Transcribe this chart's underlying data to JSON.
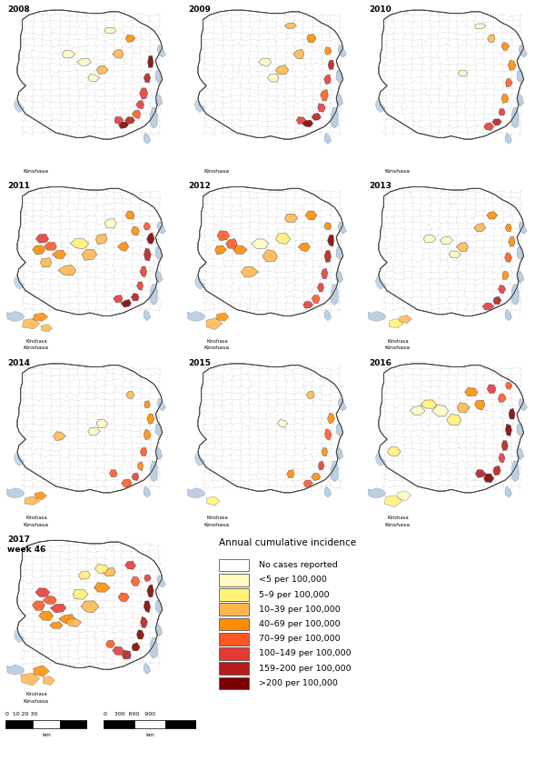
{
  "years": [
    "2008",
    "2009",
    "2010",
    "2011",
    "2012",
    "2013",
    "2014",
    "2015",
    "2016",
    "2017\nweek 46"
  ],
  "legend_title": "Annual cumulative incidence",
  "legend_items": [
    {
      "label": "No cases reported",
      "color": "#FFFFFF"
    },
    {
      "label": "<5 per 100,000",
      "color": "#FFF9C4"
    },
    {
      "label": "5–9 per 100,000",
      "color": "#FFF176"
    },
    {
      "label": "10–39 per 100,000",
      "color": "#FFB74D"
    },
    {
      "label": "40–69 per 100,000",
      "color": "#FF8C00"
    },
    {
      "label": "70–99 per 100,000",
      "color": "#FF5722"
    },
    {
      "label": "100–149 per 100,000",
      "color": "#E53935"
    },
    {
      "label": "159–200 per 100,000",
      "color": "#B71C1C"
    },
    {
      "label": ">200 per 100,000",
      "color": "#7B0000"
    }
  ],
  "background_color": "#FFFFFF",
  "fig_width": 6.0,
  "fig_height": 8.48,
  "dpi": 100,
  "water_color": "#ADC4D9",
  "border_color": "#404040",
  "grid_color": "#666666"
}
